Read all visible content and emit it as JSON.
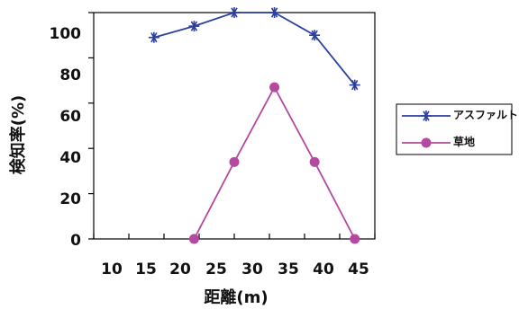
{
  "chart_data": {
    "type": "line",
    "xlabel": "距離(m)",
    "ylabel": "検知率(%)",
    "xlim": [
      10,
      45
    ],
    "ylim": [
      0,
      100
    ],
    "x_ticks": [
      "10",
      "15",
      "20",
      "25",
      "30",
      "35",
      "40",
      "45"
    ],
    "y_ticks": [
      "0",
      "20",
      "40",
      "60",
      "80",
      "100"
    ],
    "grid": false,
    "legend_position": "right",
    "series": [
      {
        "name": "アスファルト",
        "color": "#2b3f9e",
        "marker": "asterisk",
        "x": [
          17.5,
          22.5,
          27.5,
          32.5,
          37.5,
          42.5
        ],
        "y": [
          89,
          94,
          100,
          100,
          90,
          68
        ]
      },
      {
        "name": "草地",
        "color": "#b5489f",
        "marker": "circle",
        "x": [
          22.5,
          27.5,
          32.5,
          37.5,
          42.5
        ],
        "y": [
          0,
          34,
          67,
          34,
          0
        ]
      }
    ]
  }
}
